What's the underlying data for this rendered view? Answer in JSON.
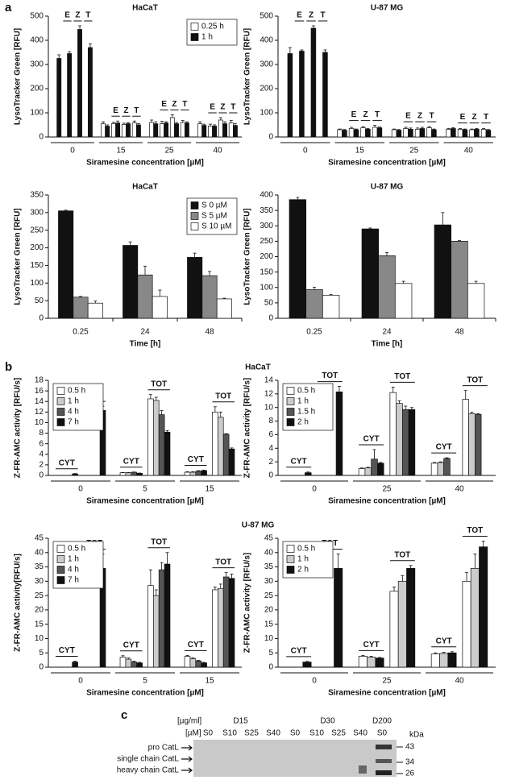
{
  "panel_labels": [
    "a",
    "b",
    "c"
  ],
  "b_row_titles": [
    "HaCaT",
    "U-87 MG"
  ],
  "chart_data": [
    {
      "type": "bar",
      "title": "HaCaT",
      "ylabel": "LysoTracker Green [RFU]",
      "xlabel": "Siramesine concentration [µM]",
      "groups": [
        "0",
        "15",
        "25",
        "40"
      ],
      "subgroups": [
        null,
        "E",
        "Z",
        "T"
      ],
      "legend": "upper right",
      "ylim": [
        0,
        500
      ],
      "yticks": [
        0,
        100,
        200,
        300,
        400,
        500
      ],
      "series": [
        {
          "name": "0.25 h",
          "color": "#ffffff",
          "values": [
            null,
            null,
            null,
            null,
            55,
            55,
            52,
            58,
            60,
            55,
            80,
            60,
            55,
            45,
            70,
            58
          ],
          "errors": [
            null,
            null,
            null,
            null,
            8,
            6,
            5,
            8,
            10,
            10,
            12,
            8,
            8,
            8,
            10,
            10
          ]
        },
        {
          "name": "1 h",
          "color": "#111111",
          "values": [
            325,
            345,
            445,
            370,
            45,
            58,
            55,
            50,
            55,
            58,
            55,
            58,
            48,
            45,
            55,
            48
          ],
          "errors": [
            15,
            8,
            15,
            15,
            5,
            8,
            5,
            5,
            8,
            5,
            5,
            5,
            5,
            5,
            8,
            8
          ]
        }
      ]
    },
    {
      "type": "bar",
      "title": "U-87 MG",
      "ylabel": "LysoTracker Green [RFU]",
      "xlabel": "Siramesine concentration [µM]",
      "groups": [
        "0",
        "15",
        "25",
        "40"
      ],
      "subgroups": [
        null,
        "E",
        "Z",
        "T"
      ],
      "ylim": [
        0,
        500
      ],
      "yticks": [
        0,
        100,
        200,
        300,
        400,
        500
      ],
      "series": [
        {
          "color": "#ffffff",
          "values": [
            null,
            null,
            null,
            null,
            30,
            35,
            38,
            40,
            30,
            35,
            32,
            38,
            32,
            32,
            30,
            32
          ],
          "errors": [
            null,
            null,
            null,
            null,
            3,
            5,
            5,
            8,
            3,
            5,
            5,
            5,
            3,
            3,
            3,
            3
          ]
        },
        {
          "color": "#111111",
          "values": [
            345,
            355,
            450,
            350,
            28,
            30,
            32,
            38,
            28,
            32,
            35,
            30,
            35,
            30,
            32,
            28
          ],
          "errors": [
            25,
            5,
            10,
            10,
            3,
            3,
            3,
            3,
            3,
            5,
            5,
            3,
            3,
            3,
            3,
            3
          ]
        }
      ]
    },
    {
      "type": "bar",
      "title": "HaCaT",
      "ylabel": "LysoTracker Green [RFU]",
      "xlabel": "Time [h]",
      "categories": [
        "0.25",
        "24",
        "48"
      ],
      "legend": "upper right",
      "ylim": [
        0,
        350
      ],
      "yticks": [
        0,
        50,
        100,
        150,
        200,
        250,
        300,
        350
      ],
      "series": [
        {
          "name": "S 0 µM",
          "color": "#111111",
          "values": [
            305,
            207,
            173
          ],
          "errors": [
            2,
            10,
            12
          ]
        },
        {
          "name": "S 5 µM",
          "color": "#888888",
          "values": [
            60,
            123,
            121
          ],
          "errors": [
            2,
            25,
            12
          ]
        },
        {
          "name": "S 10 µM",
          "color": "#ffffff",
          "values": [
            43,
            62,
            55
          ],
          "errors": [
            6,
            18,
            2
          ]
        }
      ]
    },
    {
      "type": "bar",
      "title": "U-87 MG",
      "ylabel": "LysoTracker Green [RFU]",
      "xlabel": "Time [h]",
      "categories": [
        "0.25",
        "24",
        "48"
      ],
      "ylim": [
        0,
        400
      ],
      "yticks": [
        0,
        50,
        100,
        150,
        200,
        250,
        300,
        350,
        400
      ],
      "series": [
        {
          "color": "#111111",
          "values": [
            385,
            290,
            303
          ],
          "errors": [
            7,
            3,
            40
          ]
        },
        {
          "color": "#888888",
          "values": [
            93,
            203,
            250
          ],
          "errors": [
            8,
            10,
            2
          ]
        },
        {
          "color": "#ffffff",
          "values": [
            75,
            113,
            113
          ],
          "errors": [
            2,
            7,
            7
          ]
        }
      ]
    },
    {
      "type": "bar",
      "ylabel": "Z-FR-AMC activity [RFU/s]",
      "xlabel": "Siramesine concentration [µM]",
      "groups": [
        "0",
        "5",
        "15"
      ],
      "subgroups": [
        "CYT",
        "TOT"
      ],
      "legend": "upper left",
      "ylim": [
        0,
        18
      ],
      "yticks": [
        0,
        2,
        4,
        6,
        8,
        10,
        12,
        14,
        16,
        18
      ],
      "series": [
        {
          "name": "0.5 h",
          "color": "#ffffff",
          "values": [
            null,
            null,
            0.5,
            14.5,
            0.6,
            12
          ],
          "errors": [
            null,
            null,
            0.05,
            0.8,
            0.1,
            1.0
          ]
        },
        {
          "name": "1 h",
          "color": "#cccccc",
          "values": [
            null,
            null,
            0.5,
            14.2,
            0.6,
            11
          ],
          "errors": [
            null,
            null,
            0.05,
            0.6,
            0.1,
            1.0
          ]
        },
        {
          "name": "4 h",
          "color": "#555555",
          "values": [
            null,
            null,
            0.6,
            11.5,
            0.8,
            7.8
          ],
          "errors": [
            null,
            null,
            0.05,
            0.8,
            0.1,
            0.1
          ]
        },
        {
          "name": "7 h",
          "color": "#111111",
          "values": [
            0.3,
            12.3,
            0.4,
            8.2,
            0.9,
            5
          ],
          "errors": [
            0.05,
            0.8,
            0.05,
            0.3,
            0.1,
            0.2
          ]
        }
      ]
    },
    {
      "type": "bar",
      "ylabel": "Z-FR-AMC activity [RFU/s]",
      "xlabel": "Siramesine concentration [µM]",
      "groups": [
        "0",
        "25",
        "40"
      ],
      "subgroups": [
        "CYT",
        "TOT"
      ],
      "legend": "upper left",
      "ylim": [
        0,
        14
      ],
      "yticks": [
        0,
        2,
        4,
        6,
        8,
        10,
        12,
        14
      ],
      "series": [
        {
          "name": "0.5 h",
          "color": "#ffffff",
          "values": [
            null,
            null,
            1.0,
            12.2,
            1.8,
            11.2
          ],
          "errors": [
            null,
            null,
            0.1,
            0.8,
            0.1,
            1.3
          ]
        },
        {
          "name": "1 h",
          "color": "#cccccc",
          "values": [
            null,
            null,
            1.1,
            10.6,
            1.9,
            9.1
          ],
          "errors": [
            null,
            null,
            0.1,
            0.4,
            0.1,
            0.2
          ]
        },
        {
          "name": "1.5 h",
          "color": "#555555",
          "values": [
            null,
            null,
            2.4,
            9.7,
            2.5,
            9.0
          ],
          "errors": [
            null,
            null,
            1.4,
            0.5,
            0.1,
            0.1
          ]
        },
        {
          "name": "2 h",
          "color": "#111111",
          "values": [
            0.4,
            12.3,
            1.8,
            9.7,
            null,
            null
          ],
          "errors": [
            0.1,
            0.8,
            0.1,
            0.3,
            null,
            null
          ]
        }
      ]
    },
    {
      "type": "bar",
      "ylabel": "Z-FR-AMC activity[RFU/s]",
      "xlabel": "Siramesine concentration [µM]",
      "groups": [
        "0",
        "5",
        "15"
      ],
      "subgroups": [
        "CYT",
        "TOT"
      ],
      "legend": "upper left",
      "ylim": [
        0,
        45
      ],
      "yticks": [
        0,
        5,
        10,
        15,
        20,
        25,
        30,
        35,
        40,
        45
      ],
      "series": [
        {
          "name": "0.5 h",
          "color": "#ffffff",
          "values": [
            null,
            null,
            3.5,
            28.5,
            3.8,
            27
          ],
          "errors": [
            null,
            null,
            0.5,
            5.5,
            0.3,
            1
          ]
        },
        {
          "name": "1 h",
          "color": "#cccccc",
          "values": [
            null,
            null,
            2.8,
            25,
            3,
            27.5
          ],
          "errors": [
            null,
            null,
            0.4,
            2,
            0.3,
            1.5
          ]
        },
        {
          "name": "4 h",
          "color": "#555555",
          "values": [
            null,
            null,
            1.8,
            34,
            2.2,
            31.5
          ],
          "errors": [
            null,
            null,
            0.3,
            2.5,
            0.2,
            1.5
          ]
        },
        {
          "name": "7 h",
          "color": "#111111",
          "values": [
            1.8,
            34.5,
            1.5,
            36,
            1.5,
            31
          ],
          "errors": [
            0.3,
            5,
            0.2,
            4,
            0.2,
            1.5
          ]
        }
      ]
    },
    {
      "type": "bar",
      "ylabel": "Z-FR-AMC activity [RFU/s]",
      "xlabel": "Siramesine concentration [µM]",
      "groups": [
        "0",
        "25",
        "40"
      ],
      "subgroups": [
        "CYT",
        "TOT"
      ],
      "legend": "upper left",
      "ylim": [
        0,
        45
      ],
      "yticks": [
        0,
        5,
        10,
        15,
        20,
        25,
        30,
        35,
        40,
        45
      ],
      "series": [
        {
          "name": "0.5 h",
          "color": "#ffffff",
          "values": [
            null,
            null,
            3.8,
            26.5,
            4.6,
            30
          ],
          "errors": [
            null,
            null,
            0.3,
            1.5,
            0.4,
            3
          ]
        },
        {
          "name": "1 h",
          "color": "#cccccc",
          "values": [
            null,
            null,
            3.5,
            30,
            4.8,
            34.5
          ],
          "errors": [
            null,
            null,
            0.3,
            2,
            0.4,
            5
          ]
        },
        {
          "name": "2 h",
          "color": "#111111",
          "values": [
            1.8,
            34.5,
            3.2,
            34.5,
            5,
            42
          ],
          "errors": [
            0.2,
            5,
            0.2,
            1,
            0.4,
            2
          ]
        }
      ]
    }
  ],
  "blot": {
    "units": [
      "[µg/ml]",
      "[µM]"
    ],
    "doses": [
      "D15",
      "D30",
      "D200"
    ],
    "lanes": [
      "S0",
      "S10",
      "S25",
      "S40",
      "S0",
      "S10",
      "S25",
      "S40",
      "S0"
    ],
    "bands": [
      "pro CatL",
      "single chain CatL",
      "heavy chain CatL"
    ],
    "kda_label": "kDa",
    "markers": [
      43,
      34,
      26
    ]
  }
}
